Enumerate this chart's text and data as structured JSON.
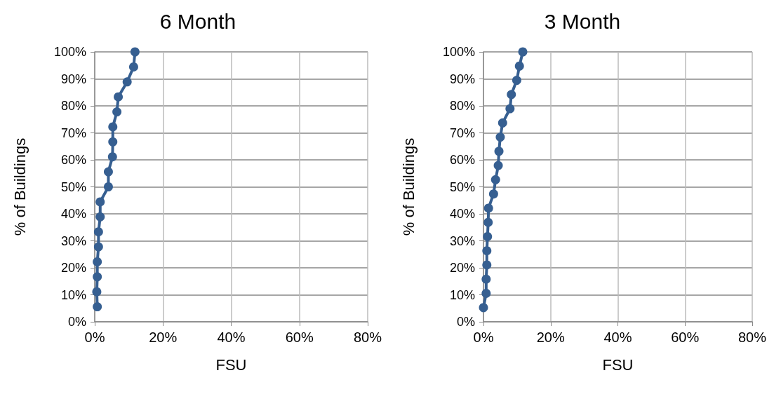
{
  "chart_data": [
    {
      "type": "line",
      "title": "6 Month",
      "xlabel": "FSU",
      "ylabel": "% of Buildings",
      "x": [
        0.75,
        0.6,
        0.75,
        0.75,
        1.1,
        1.1,
        1.6,
        1.6,
        4.0,
        4.0,
        5.2,
        5.3,
        5.3,
        6.5,
        6.9,
        9.5,
        11.4,
        11.8
      ],
      "series": [
        {
          "color": "#365f91",
          "values": [
            5.56,
            11.11,
            16.67,
            22.22,
            27.78,
            33.33,
            38.89,
            44.44,
            50,
            55.56,
            61.11,
            66.67,
            72.22,
            77.78,
            83.33,
            88.89,
            94.44,
            100
          ]
        }
      ],
      "xlim": [
        0,
        80
      ],
      "xticks": [
        {
          "value": 0,
          "label": "0%"
        },
        {
          "value": 20,
          "label": "20%"
        },
        {
          "value": 40,
          "label": "40%"
        },
        {
          "value": 60,
          "label": "60%"
        },
        {
          "value": 80,
          "label": "80%"
        }
      ],
      "ylim": [
        0,
        100
      ],
      "yticks": [
        {
          "value": 0,
          "label": "0%"
        },
        {
          "value": 10,
          "label": "10%"
        },
        {
          "value": 20,
          "label": "20%"
        },
        {
          "value": 30,
          "label": "30%"
        },
        {
          "value": 40,
          "label": "40%"
        },
        {
          "value": 50,
          "label": "50%"
        },
        {
          "value": 60,
          "label": "60%"
        },
        {
          "value": 70,
          "label": "70%"
        },
        {
          "value": 80,
          "label": "80%"
        },
        {
          "value": 90,
          "label": "90%"
        },
        {
          "value": 100,
          "label": "100%"
        }
      ],
      "grid": true,
      "marker": "circle",
      "line_style": "solid"
    },
    {
      "type": "line",
      "title": "3 Month",
      "xlabel": "FSU",
      "ylabel": "% of Buildings",
      "x": [
        0,
        0.8,
        0.8,
        1.0,
        1.0,
        1.2,
        1.4,
        1.5,
        3.0,
        3.6,
        4.4,
        4.6,
        5.0,
        5.7,
        7.9,
        8.3,
        9.9,
        10.7,
        11.7
      ],
      "series": [
        {
          "color": "#365f91",
          "values": [
            5.26,
            10.53,
            15.79,
            21.05,
            26.32,
            31.58,
            36.84,
            42.11,
            47.37,
            52.63,
            57.89,
            63.16,
            68.42,
            73.68,
            78.95,
            84.21,
            89.47,
            94.74,
            100
          ]
        }
      ],
      "xlim": [
        0,
        80
      ],
      "xticks": [
        {
          "value": 0,
          "label": "0%"
        },
        {
          "value": 20,
          "label": "20%"
        },
        {
          "value": 40,
          "label": "40%"
        },
        {
          "value": 60,
          "label": "60%"
        },
        {
          "value": 80,
          "label": "80%"
        }
      ],
      "ylim": [
        0,
        100
      ],
      "yticks": [
        {
          "value": 0,
          "label": "0%"
        },
        {
          "value": 10,
          "label": "10%"
        },
        {
          "value": 20,
          "label": "20%"
        },
        {
          "value": 30,
          "label": "30%"
        },
        {
          "value": 40,
          "label": "40%"
        },
        {
          "value": 50,
          "label": "50%"
        },
        {
          "value": 60,
          "label": "60%"
        },
        {
          "value": 70,
          "label": "70%"
        },
        {
          "value": 80,
          "label": "80%"
        },
        {
          "value": 90,
          "label": "90%"
        },
        {
          "value": 100,
          "label": "100%"
        }
      ],
      "grid": true,
      "marker": "circle",
      "line_style": "solid"
    }
  ]
}
